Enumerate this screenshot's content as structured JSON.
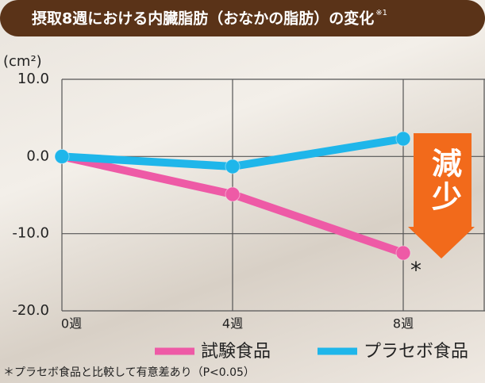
{
  "chart_data": {
    "type": "line",
    "title": "摂取8週における内臓脂肪（おなかの脂肪）の変化",
    "title_note": "※1",
    "y_label": "(cm²)",
    "categories": [
      "0週",
      "4週",
      "8週"
    ],
    "series": [
      {
        "name": "試験食品",
        "color": "#ee5aa6",
        "values": [
          0,
          -4.9,
          -12.5
        ]
      },
      {
        "name": "プラセボ食品",
        "color": "#1fb6ea",
        "values": [
          0,
          -1.3,
          2.3
        ]
      }
    ],
    "ylim": [
      -20,
      10
    ],
    "yticks": [
      {
        "value": -20,
        "label": "-20.0"
      },
      {
        "value": -10,
        "label": "-10.0"
      },
      {
        "value": 0,
        "label": "0.0"
      },
      {
        "value": 10,
        "label": "10.0"
      }
    ],
    "grid": true,
    "significance_mark": "*",
    "arrow_label": "減少",
    "footnote": "＊プラセボ食品と比較して有意差あり（P<0.05）"
  }
}
